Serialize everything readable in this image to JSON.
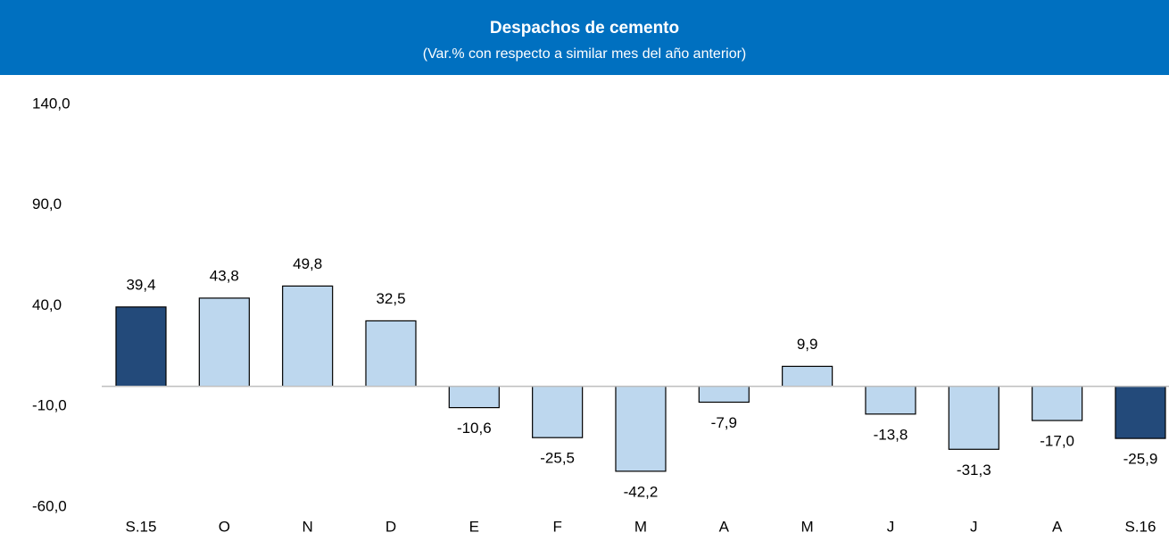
{
  "chart_data": {
    "type": "bar",
    "title": "Despachos de cemento",
    "subtitle": "(Var.% con respecto a similar mes del año anterior)",
    "categories": [
      "S.15",
      "O",
      "N",
      "D",
      "E",
      "F",
      "M",
      "A",
      "M",
      "J",
      "J",
      "A",
      "S.16"
    ],
    "values": [
      39.4,
      43.8,
      49.8,
      32.5,
      -10.6,
      -25.5,
      -42.2,
      -7.9,
      9.9,
      -13.8,
      -31.3,
      -17.0,
      -25.9
    ],
    "value_labels": [
      "39,4",
      "43,8",
      "49,8",
      "32,5",
      "-10,6",
      "-25,5",
      "-42,2",
      "-7,9",
      "9,9",
      "-13,8",
      "-31,3",
      "-17,0",
      "-25,9"
    ],
    "colors": [
      "#234a7a",
      "#bdd7ee",
      "#bdd7ee",
      "#bdd7ee",
      "#bdd7ee",
      "#bdd7ee",
      "#bdd7ee",
      "#bdd7ee",
      "#bdd7ee",
      "#bdd7ee",
      "#bdd7ee",
      "#bdd7ee",
      "#234a7a"
    ],
    "ylim": [
      -60,
      140
    ],
    "yticks": [
      {
        "value": -60,
        "label": "-60,0"
      },
      {
        "value": -10,
        "label": "-10,0"
      },
      {
        "value": 40,
        "label": "40,0"
      },
      {
        "value": 90,
        "label": "90,0"
      },
      {
        "value": 140,
        "label": "140,0"
      }
    ],
    "grid": false
  }
}
